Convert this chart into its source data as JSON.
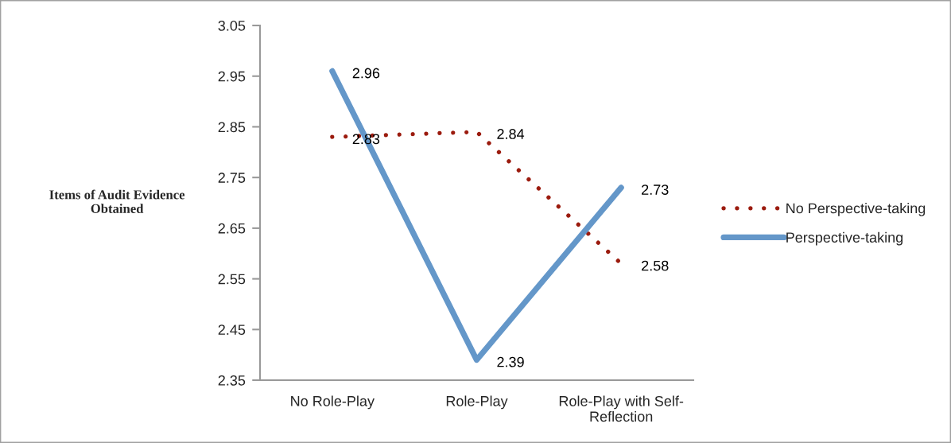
{
  "chart_data": {
    "type": "line",
    "ylabel": "Items of Audit Evidence\nObtained",
    "categories": [
      "No Role-Play",
      "Role-Play",
      "Role-Play with Self-\nReflection"
    ],
    "series": [
      {
        "name": "No Perspective-taking",
        "color": "#9b1b0e",
        "line_style": "dotted",
        "values": [
          2.83,
          2.84,
          2.58
        ]
      },
      {
        "name": "Perspective-taking",
        "color": "#6497c9",
        "line_style": "solid",
        "values": [
          2.96,
          2.39,
          2.73
        ]
      }
    ],
    "ylim": [
      2.35,
      3.05
    ],
    "yticks": [
      2.35,
      2.45,
      2.55,
      2.65,
      2.75,
      2.85,
      2.95,
      3.05
    ],
    "data_labels": true,
    "grid": false,
    "legend": "right",
    "marker": "none"
  }
}
